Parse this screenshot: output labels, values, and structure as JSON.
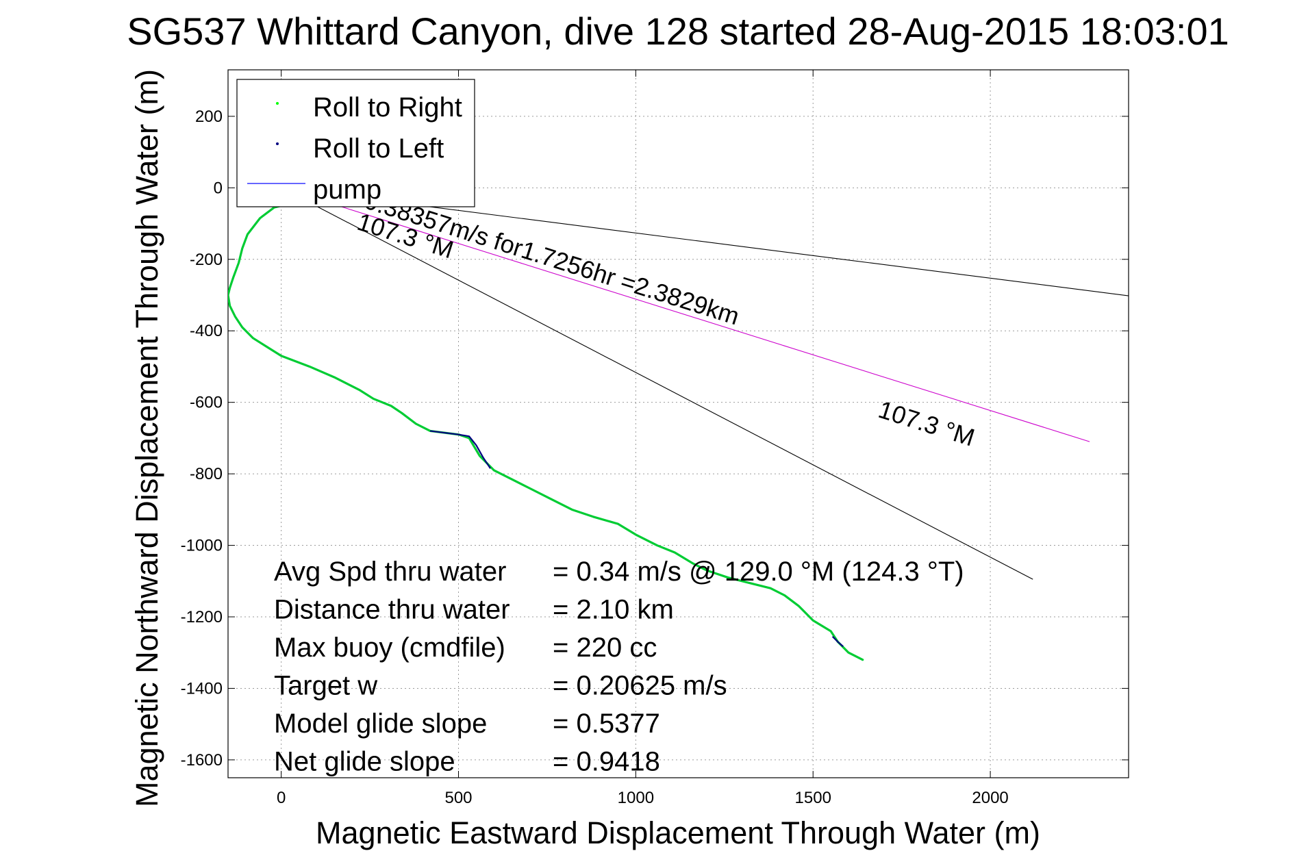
{
  "chart_data": {
    "type": "line",
    "title": "SG537 Whittard Canyon, dive 128 started 28-Aug-2015 18:03:01",
    "xlabel": "Magnetic Eastward Displacement Through Water (m)",
    "ylabel": "Magnetic Northward Displacement Through Water (m)",
    "xlim": [
      -150,
      2390
    ],
    "ylim": [
      -1650,
      330
    ],
    "xticks": [
      0,
      500,
      1000,
      1500,
      2000
    ],
    "yticks": [
      200,
      0,
      -200,
      -400,
      -600,
      -800,
      -1000,
      -1200,
      -1400,
      -1600
    ],
    "grid": true,
    "legend": {
      "placement": "top-left",
      "entries": [
        {
          "label": "Roll to Right",
          "color": "#00ff00",
          "style": "dot"
        },
        {
          "label": "Roll to Left",
          "color": "#000080",
          "style": "dot"
        },
        {
          "label": "pump",
          "color": "#0000ff",
          "style": "line"
        }
      ]
    },
    "series": [
      {
        "name": "Roll to Right",
        "color": "#00cc33",
        "x": [
          0,
          -20,
          -60,
          -95,
          -110,
          -120,
          -135,
          -145,
          -150,
          -145,
          -130,
          -110,
          -80,
          -40,
          0,
          80,
          150,
          220,
          260,
          310,
          340,
          380,
          420,
          460,
          500,
          530,
          560,
          600,
          650,
          700,
          760,
          820,
          880,
          950,
          1000,
          1060,
          1110,
          1160,
          1200,
          1260,
          1320,
          1380,
          1420,
          1460,
          1500,
          1550,
          1570,
          1600,
          1640
        ],
        "y": [
          -50,
          -55,
          -85,
          -130,
          -170,
          -210,
          -250,
          -280,
          -300,
          -330,
          -360,
          -390,
          -420,
          -445,
          -470,
          -500,
          -530,
          -565,
          -590,
          -610,
          -630,
          -660,
          -680,
          -685,
          -690,
          -700,
          -750,
          -790,
          -815,
          -840,
          -870,
          -900,
          -920,
          -940,
          -970,
          -1000,
          -1020,
          -1050,
          -1070,
          -1090,
          -1105,
          -1120,
          -1140,
          -1170,
          -1210,
          -1240,
          -1270,
          -1300,
          -1320
        ]
      },
      {
        "name": "Roll to Left",
        "color": "#000080",
        "segments": [
          {
            "x": [
              420,
              460,
              500,
              530,
              550,
              570,
              590
            ],
            "y": [
              -680,
              -685,
              -690,
              -695,
              -720,
              -755,
              -785
            ]
          },
          {
            "x": [
              1555,
              1570,
              1585
            ],
            "y": [
              -1255,
              -1270,
              -1283
            ]
          }
        ]
      }
    ],
    "reference_lines": [
      {
        "color": "#000000",
        "x": [
          0,
          2390
        ],
        "y": [
          0,
          -302
        ]
      },
      {
        "color": "#000000",
        "x": [
          0,
          2120
        ],
        "y": [
          0,
          -1095
        ]
      },
      {
        "color": "#cc00cc",
        "x": [
          0,
          2280
        ],
        "y": [
          0,
          -710
        ]
      }
    ],
    "annotations": [
      {
        "text": "0.38357m/s for1.7256hr =2.3829km",
        "x": 230,
        "y": -55,
        "angle": 17.5
      },
      {
        "text": "107.3 °M",
        "x": 210,
        "y": -115,
        "angle": 17.5
      },
      {
        "text": "107.3 °M",
        "x": 1680,
        "y": -640,
        "angle": 17.5
      }
    ],
    "stats": [
      {
        "label": "Avg Spd thru water",
        "value": "=  0.34 m/s @ 129.0 °M (124.3 °T)"
      },
      {
        "label": "Distance thru water",
        "value": "=  2.10 km"
      },
      {
        "label": "Max buoy (cmdfile)",
        "value": "= 220 cc"
      },
      {
        "label": "Target w",
        "value": "= 0.20625 m/s"
      },
      {
        "label": "Model glide slope",
        "value": "= 0.5377"
      },
      {
        "label": "Net glide slope",
        "value": "= 0.9418"
      }
    ]
  }
}
